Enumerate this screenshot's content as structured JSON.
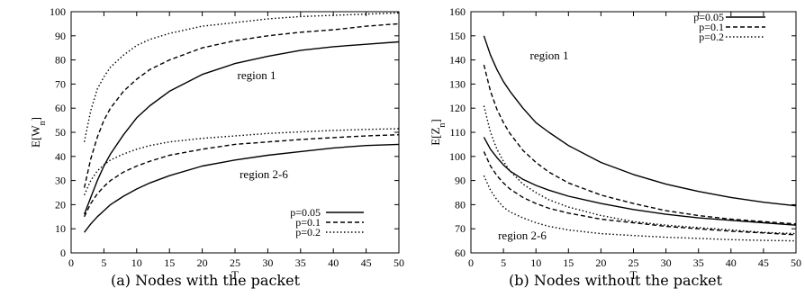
{
  "captions": [
    "(a) Nodes with the packet",
    "(b) Nodes without the packet"
  ],
  "chart_data": [
    {
      "type": "line",
      "title": "",
      "xlabel": "T",
      "ylabel": "E[W_n]",
      "xlim": [
        0,
        50
      ],
      "ylim": [
        0,
        100
      ],
      "xticks": [
        0,
        5,
        10,
        15,
        20,
        25,
        30,
        35,
        40,
        45,
        50
      ],
      "yticks": [
        0,
        10,
        20,
        30,
        40,
        50,
        60,
        70,
        80,
        90,
        100
      ],
      "grid": false,
      "legend_position": "bottom-right",
      "legend": [
        "p=0.05",
        "p=0.1",
        "p=0.2"
      ],
      "annotations": [
        "region 1",
        "region 2-6"
      ],
      "x": [
        2,
        3,
        4,
        5,
        6,
        8,
        10,
        12,
        15,
        20,
        25,
        30,
        35,
        40,
        45,
        50
      ],
      "series": [
        {
          "name": "p=0.05",
          "group": "region 1",
          "style": "solid",
          "values": [
            16,
            23,
            30,
            36,
            41,
            49,
            56,
            61,
            67,
            74,
            78.5,
            81.5,
            84,
            85.5,
            86.5,
            87.5
          ]
        },
        {
          "name": "p=0.1",
          "group": "region 1",
          "style": "dashed",
          "values": [
            27,
            39,
            48,
            55,
            60,
            67,
            72,
            76,
            80,
            85,
            88,
            90,
            91.5,
            92.5,
            94,
            95
          ]
        },
        {
          "name": "p=0.2",
          "group": "region 1",
          "style": "dotted",
          "values": [
            46,
            59,
            68,
            73,
            77,
            82,
            86,
            88.5,
            91,
            94,
            95.5,
            97,
            98,
            98.5,
            99,
            99.5
          ]
        },
        {
          "name": "p=0.05",
          "group": "region 2-6",
          "style": "solid",
          "values": [
            8.5,
            12,
            15,
            17.5,
            20,
            23.5,
            26.5,
            29,
            32,
            36,
            38.5,
            40.5,
            42,
            43.5,
            44.5,
            45
          ]
        },
        {
          "name": "p=0.1",
          "group": "region 2-6",
          "style": "dashed",
          "values": [
            15,
            20.5,
            24.5,
            27.5,
            30,
            33.5,
            36,
            38,
            40.5,
            43,
            45,
            46,
            47,
            47.8,
            48.5,
            49
          ]
        },
        {
          "name": "p=0.2",
          "group": "region 2-6",
          "style": "dotted",
          "values": [
            24,
            30,
            34,
            36.5,
            38.5,
            41,
            43,
            44.5,
            46,
            47.5,
            48.5,
            49.5,
            50.2,
            50.8,
            51.2,
            51.5
          ]
        }
      ]
    },
    {
      "type": "line",
      "title": "",
      "xlabel": "T",
      "ylabel": "E[Z_n]",
      "xlim": [
        0,
        50
      ],
      "ylim": [
        60,
        160
      ],
      "xticks": [
        0,
        5,
        10,
        15,
        20,
        25,
        30,
        35,
        40,
        45,
        50
      ],
      "yticks": [
        60,
        70,
        80,
        90,
        100,
        110,
        120,
        130,
        140,
        150,
        160
      ],
      "grid": false,
      "legend_position": "top-right",
      "legend": [
        "p=0.05",
        "p=0.1",
        "p=0.2"
      ],
      "annotations": [
        "region 1",
        "region 2-6"
      ],
      "x": [
        2,
        3,
        4,
        5,
        6,
        8,
        10,
        12,
        15,
        20,
        25,
        30,
        35,
        40,
        45,
        50
      ],
      "series": [
        {
          "name": "p=0.05",
          "group": "region 1",
          "style": "solid",
          "values": [
            150,
            142,
            136,
            131,
            127,
            120,
            114,
            110,
            104.5,
            97.5,
            92.5,
            88.5,
            85.5,
            83,
            81,
            79.5
          ]
        },
        {
          "name": "p=0.1",
          "group": "region 1",
          "style": "dashed",
          "values": [
            138,
            127,
            119.5,
            114,
            109.5,
            102.5,
            97.5,
            93.5,
            89,
            84,
            80.5,
            77.5,
            75.5,
            74,
            73,
            72
          ]
        },
        {
          "name": "p=0.2",
          "group": "region 1",
          "style": "dotted",
          "values": [
            121,
            110,
            103,
            98,
            94,
            88.5,
            85,
            82,
            79,
            75.5,
            73,
            71.5,
            70.5,
            69.5,
            68.5,
            68
          ]
        },
        {
          "name": "p=0.05",
          "group": "region 2-6",
          "style": "solid",
          "values": [
            108,
            103,
            99.5,
            96.5,
            94,
            90.5,
            88,
            86,
            83.5,
            80.5,
            78,
            76,
            74.5,
            73.5,
            72.5,
            71.5
          ]
        },
        {
          "name": "p=0.1",
          "group": "region 2-6",
          "style": "dashed",
          "values": [
            102,
            96,
            92,
            89,
            86.5,
            83,
            80.5,
            78.5,
            76.5,
            74,
            72.5,
            71,
            70,
            69,
            68.3,
            67.5
          ]
        },
        {
          "name": "p=0.2",
          "group": "region 2-6",
          "style": "dotted",
          "values": [
            92,
            86,
            82,
            79,
            77,
            74.5,
            72.5,
            71,
            69.5,
            68,
            67.2,
            66.5,
            66,
            65.5,
            65.2,
            65
          ]
        }
      ]
    }
  ]
}
